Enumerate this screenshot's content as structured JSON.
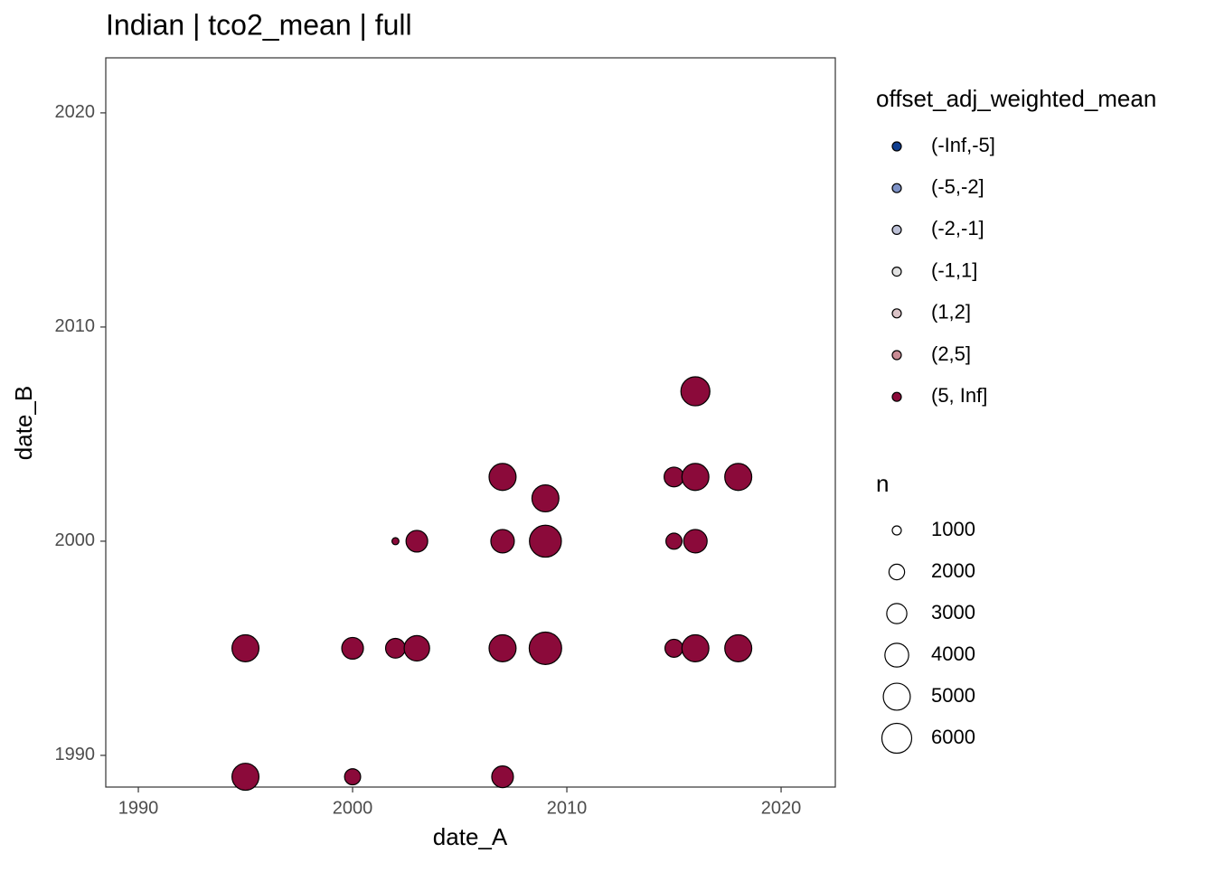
{
  "chart_data": {
    "type": "scatter",
    "title": "Indian | tco2_mean | full",
    "x_label": "date_A",
    "y_label": "date_B",
    "xlim": [
      1988.48,
      2022.53
    ],
    "xticks": [
      1990,
      2000,
      2010,
      2020
    ],
    "ylim": [
      1988.52,
      2022.57
    ],
    "yticks": [
      1990,
      2000,
      2010,
      2020
    ],
    "grid": false,
    "color_legend_title": "offset_adj_weighted_mean",
    "series": [
      {
        "name": "(-Inf,-5]",
        "color": "#0f3d8f",
        "x": [],
        "values": [],
        "sizes": []
      },
      {
        "name": "(-5,-2]",
        "color": "#7d91c6",
        "x": [],
        "values": [],
        "sizes": []
      },
      {
        "name": "(-2,-1]",
        "color": "#bcc0d6",
        "x": [],
        "values": [],
        "sizes": []
      },
      {
        "name": "(-1,1]",
        "color": "#e2e2e2",
        "x": [],
        "values": [],
        "sizes": []
      },
      {
        "name": "(1,2]",
        "color": "#dbc3c7",
        "x": [],
        "values": [],
        "sizes": []
      },
      {
        "name": "(2,5]",
        "color": "#c98b94",
        "x": [],
        "values": [],
        "sizes": []
      },
      {
        "name": "(5, Inf]",
        "color": "#8b0a3a",
        "x": [
          1995,
          1995,
          2000,
          2000,
          2002,
          2002,
          2003,
          2003,
          2007,
          2007,
          2007,
          2007,
          2009,
          2009,
          2009,
          2015,
          2015,
          2015,
          2016,
          2016,
          2016,
          2016,
          2018,
          2018
        ],
        "values": [
          1995,
          1989,
          1995,
          1989,
          1995,
          2000,
          1995,
          2000,
          1995,
          2000,
          2003,
          1989,
          1995,
          2000,
          2002,
          1995,
          2000,
          2003,
          1995,
          2000,
          2003,
          2007,
          1995,
          2003
        ],
        "sizes": [
          5000,
          5000,
          3400,
          2100,
          2900,
          800,
          4500,
          3400,
          5000,
          3900,
          5000,
          3400,
          7000,
          6800,
          5000,
          2500,
          2100,
          2900,
          5000,
          3900,
          5000,
          5700,
          5000,
          5000
        ]
      }
    ],
    "size_legend": {
      "title": "n",
      "values": [
        1000,
        2000,
        3000,
        4000,
        5000,
        6000
      ]
    }
  }
}
